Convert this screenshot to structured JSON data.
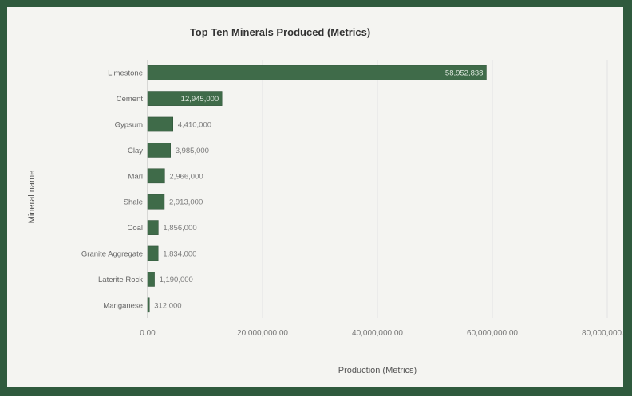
{
  "chart_data": {
    "type": "bar",
    "orientation": "horizontal",
    "title": "Top Ten Minerals Produced (Metrics)",
    "xlabel": "Production (Metrics)",
    "ylabel": "Mineral name",
    "categories": [
      "Limestone",
      "Cement",
      "Gypsum",
      "Clay",
      "Marl",
      "Shale",
      "Coal",
      "Granite Aggregate",
      "Laterite Rock",
      "Manganese"
    ],
    "values": [
      58952838,
      12945000,
      4410000,
      3985000,
      2966000,
      2913000,
      1856000,
      1834000,
      1190000,
      312000
    ],
    "value_labels": [
      "58,952,838",
      "12,945,000",
      "4,410,000",
      "3,985,000",
      "2,966,000",
      "2,913,000",
      "1,856,000",
      "1,834,000",
      "1,190,000",
      "312,000"
    ],
    "xlim": [
      0,
      80000000
    ],
    "xticks": [
      0,
      20000000,
      40000000,
      60000000,
      80000000
    ],
    "xtick_labels": [
      "0.00",
      "20,000,000.00",
      "40,000,000.00",
      "60,000,000.00",
      "80,000,000.00"
    ],
    "grid": true,
    "legend": "none",
    "colors": {
      "bar": "#3f6b49",
      "bar_edge": "#2a4d33",
      "frame": "#2f5a3d",
      "background": "#f4f4f1",
      "label_inside": "#dfe8df",
      "label_outside": "#7a7a7a"
    }
  }
}
